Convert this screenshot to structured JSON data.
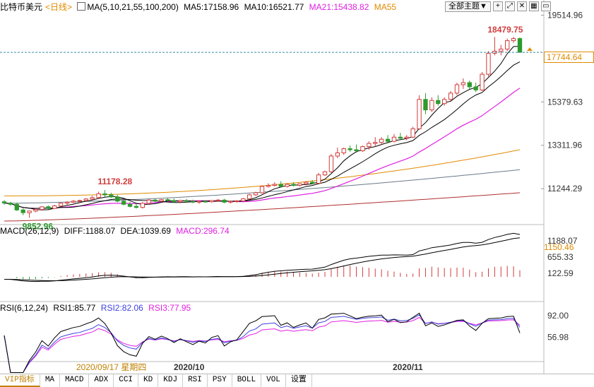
{
  "header_main": {
    "title": "比特币美元",
    "period": "<日线>",
    "ma_label": "MA(5,10,21,55,100,200)",
    "ma5": "MA5:17158.96",
    "ma10": "MA10:16521.77",
    "ma21": "MA21:15438.82",
    "ma55": "MA55"
  },
  "toolbar": {
    "theme_select": "全部主题▼",
    "icons": [
      "plus-square-icon",
      "expand-icon",
      "close-icon",
      "grid-icon",
      "window-icon"
    ]
  },
  "header_macd": {
    "label": "MACD(26,12,9)",
    "diff": "DIFF:1188.07",
    "dea": "DEA:1039.69",
    "macd": "MACD:296.74"
  },
  "header_rsi": {
    "label": "RSI(6,12,24)",
    "rsi1": "RSI1:85.77",
    "rsi2": "RSI2:82.06",
    "rsi3": "RSI3:77.95"
  },
  "price_axis": [
    "19514.96",
    "15379.63",
    "13311.96",
    "11244.29"
  ],
  "current_price": "17744.64",
  "macd_axis": [
    "1188.07",
    "655.33",
    "122.59"
  ],
  "macd_current": "1150.46",
  "rsi_axis": [
    "92.00",
    "56.98"
  ],
  "annotations": {
    "high": "18479.75",
    "mid_high": "11178.28",
    "low": "9852.96"
  },
  "date_axis": {
    "cursor_date": "2020/09/17 星期四",
    "oct": "2020/10",
    "nov": "2020/11"
  },
  "tabs": [
    "VIP指标",
    "MA",
    "MACD",
    "ADX",
    "CCI",
    "KD",
    "KDJ",
    "RSI",
    "PSY",
    "BOLL",
    "VOL",
    "设置"
  ],
  "colors": {
    "up": "#d23c3c",
    "down": "#2e9a2e",
    "ma5": "#000000",
    "ma10": "#000000",
    "ma21": "#e020e0",
    "ma55": "#e08a00",
    "ma100": "#6a7a8a",
    "ma200": "#b03030",
    "current_line": "#3a8aaa"
  },
  "chart_data": {
    "type": "candlestick",
    "title": "比特币美元<日线>",
    "ylim": [
      9600,
      19700
    ],
    "x_start": "2020-09-01",
    "x_end": "2020-11-24",
    "candles": [
      {
        "d": "2020-09-01",
        "o": 10620,
        "h": 10700,
        "l": 10480,
        "c": 10560
      },
      {
        "d": "2020-09-02",
        "o": 10560,
        "h": 10620,
        "l": 10420,
        "c": 10500
      },
      {
        "d": "2020-09-03",
        "o": 10500,
        "h": 10580,
        "l": 10180,
        "c": 10230
      },
      {
        "d": "2020-09-04",
        "o": 10230,
        "h": 10300,
        "l": 9980,
        "c": 10100
      },
      {
        "d": "2020-09-05",
        "o": 10100,
        "h": 10150,
        "l": 9852.96,
        "c": 10180
      },
      {
        "d": "2020-09-06",
        "o": 10180,
        "h": 10300,
        "l": 10120,
        "c": 10250
      },
      {
        "d": "2020-09-07",
        "o": 10250,
        "h": 10400,
        "l": 10200,
        "c": 10380
      },
      {
        "d": "2020-09-08",
        "o": 10380,
        "h": 10450,
        "l": 10250,
        "c": 10300
      },
      {
        "d": "2020-09-09",
        "o": 10300,
        "h": 10480,
        "l": 10280,
        "c": 10420
      },
      {
        "d": "2020-09-10",
        "o": 10420,
        "h": 10600,
        "l": 10380,
        "c": 10550
      },
      {
        "d": "2020-09-11",
        "o": 10550,
        "h": 10650,
        "l": 10480,
        "c": 10600
      },
      {
        "d": "2020-09-12",
        "o": 10600,
        "h": 10700,
        "l": 10550,
        "c": 10650
      },
      {
        "d": "2020-09-13",
        "o": 10650,
        "h": 10720,
        "l": 10580,
        "c": 10680
      },
      {
        "d": "2020-09-14",
        "o": 10680,
        "h": 10800,
        "l": 10620,
        "c": 10750
      },
      {
        "d": "2020-09-15",
        "o": 10750,
        "h": 10900,
        "l": 10700,
        "c": 10820
      },
      {
        "d": "2020-09-16",
        "o": 10820,
        "h": 11100,
        "l": 10780,
        "c": 11000
      },
      {
        "d": "2020-09-17",
        "o": 11000,
        "h": 11178.28,
        "l": 10850,
        "c": 10950
      },
      {
        "d": "2020-09-18",
        "o": 10950,
        "h": 11050,
        "l": 10800,
        "c": 10850
      },
      {
        "d": "2020-09-19",
        "o": 10850,
        "h": 10950,
        "l": 10600,
        "c": 10650
      },
      {
        "d": "2020-09-20",
        "o": 10650,
        "h": 10700,
        "l": 10450,
        "c": 10500
      },
      {
        "d": "2020-09-21",
        "o": 10500,
        "h": 10600,
        "l": 10350,
        "c": 10400
      },
      {
        "d": "2020-09-22",
        "o": 10400,
        "h": 10550,
        "l": 10300,
        "c": 10350
      },
      {
        "d": "2020-09-23",
        "o": 10350,
        "h": 10600,
        "l": 10300,
        "c": 10550
      },
      {
        "d": "2020-09-24",
        "o": 10550,
        "h": 10750,
        "l": 10500,
        "c": 10700
      },
      {
        "d": "2020-09-25",
        "o": 10700,
        "h": 10780,
        "l": 10600,
        "c": 10650
      },
      {
        "d": "2020-09-26",
        "o": 10650,
        "h": 10750,
        "l": 10600,
        "c": 10720
      },
      {
        "d": "2020-09-27",
        "o": 10720,
        "h": 10800,
        "l": 10620,
        "c": 10680
      },
      {
        "d": "2020-09-28",
        "o": 10680,
        "h": 10780,
        "l": 10580,
        "c": 10620
      },
      {
        "d": "2020-09-29",
        "o": 10620,
        "h": 10720,
        "l": 10560,
        "c": 10680
      },
      {
        "d": "2020-09-30",
        "o": 10680,
        "h": 10750,
        "l": 10600,
        "c": 10640
      },
      {
        "d": "2020-10-01",
        "o": 10640,
        "h": 10720,
        "l": 10550,
        "c": 10600
      },
      {
        "d": "2020-10-02",
        "o": 10600,
        "h": 10680,
        "l": 10520,
        "c": 10640
      },
      {
        "d": "2020-10-03",
        "o": 10640,
        "h": 10700,
        "l": 10580,
        "c": 10620
      },
      {
        "d": "2020-10-04",
        "o": 10620,
        "h": 10700,
        "l": 10580,
        "c": 10680
      },
      {
        "d": "2020-10-05",
        "o": 10680,
        "h": 10750,
        "l": 10620,
        "c": 10700
      },
      {
        "d": "2020-10-06",
        "o": 10700,
        "h": 10760,
        "l": 10550,
        "c": 10600
      },
      {
        "d": "2020-10-07",
        "o": 10600,
        "h": 10680,
        "l": 10540,
        "c": 10640
      },
      {
        "d": "2020-10-08",
        "o": 10640,
        "h": 10700,
        "l": 10580,
        "c": 10660
      },
      {
        "d": "2020-10-09",
        "o": 10660,
        "h": 10800,
        "l": 10620,
        "c": 10760
      },
      {
        "d": "2020-10-10",
        "o": 10760,
        "h": 11000,
        "l": 10720,
        "c": 10950
      },
      {
        "d": "2020-10-11",
        "o": 10950,
        "h": 11100,
        "l": 10900,
        "c": 11050
      },
      {
        "d": "2020-10-12",
        "o": 11050,
        "h": 11400,
        "l": 11000,
        "c": 11350
      },
      {
        "d": "2020-10-13",
        "o": 11350,
        "h": 11500,
        "l": 11300,
        "c": 11400
      },
      {
        "d": "2020-10-14",
        "o": 11400,
        "h": 11550,
        "l": 11350,
        "c": 11450
      },
      {
        "d": "2020-10-15",
        "o": 11450,
        "h": 11600,
        "l": 11300,
        "c": 11350
      },
      {
        "d": "2020-10-16",
        "o": 11350,
        "h": 11500,
        "l": 11300,
        "c": 11450
      },
      {
        "d": "2020-10-17",
        "o": 11450,
        "h": 11550,
        "l": 11350,
        "c": 11400
      },
      {
        "d": "2020-10-18",
        "o": 11400,
        "h": 11500,
        "l": 11350,
        "c": 11480
      },
      {
        "d": "2020-10-19",
        "o": 11480,
        "h": 11600,
        "l": 11400,
        "c": 11550
      },
      {
        "d": "2020-10-20",
        "o": 11550,
        "h": 11650,
        "l": 11450,
        "c": 11500
      },
      {
        "d": "2020-10-21",
        "o": 11500,
        "h": 12000,
        "l": 11480,
        "c": 11900
      },
      {
        "d": "2020-10-22",
        "o": 11900,
        "h": 12100,
        "l": 11850,
        "c": 12050
      },
      {
        "d": "2020-10-23",
        "o": 12050,
        "h": 12900,
        "l": 12000,
        "c": 12800
      },
      {
        "d": "2020-10-24",
        "o": 12800,
        "h": 13200,
        "l": 12700,
        "c": 12950
      },
      {
        "d": "2020-10-25",
        "o": 12950,
        "h": 13200,
        "l": 12850,
        "c": 13150
      },
      {
        "d": "2020-10-26",
        "o": 13150,
        "h": 13300,
        "l": 13000,
        "c": 13100
      },
      {
        "d": "2020-10-27",
        "o": 13100,
        "h": 13350,
        "l": 12950,
        "c": 13050
      },
      {
        "d": "2020-10-28",
        "o": 13050,
        "h": 13300,
        "l": 13000,
        "c": 13250
      },
      {
        "d": "2020-10-29",
        "o": 13250,
        "h": 13500,
        "l": 13100,
        "c": 13400
      },
      {
        "d": "2020-10-30",
        "o": 13400,
        "h": 13700,
        "l": 13250,
        "c": 13450
      },
      {
        "d": "2020-10-31",
        "o": 13450,
        "h": 13700,
        "l": 13350,
        "c": 13600
      },
      {
        "d": "2020-11-01",
        "o": 13600,
        "h": 13800,
        "l": 13400,
        "c": 13500
      },
      {
        "d": "2020-11-02",
        "o": 13500,
        "h": 13850,
        "l": 13450,
        "c": 13700
      },
      {
        "d": "2020-11-03",
        "o": 13700,
        "h": 13900,
        "l": 13550,
        "c": 13650
      },
      {
        "d": "2020-11-04",
        "o": 13650,
        "h": 13800,
        "l": 13550,
        "c": 13700
      },
      {
        "d": "2020-11-05",
        "o": 13700,
        "h": 14200,
        "l": 13650,
        "c": 14100
      },
      {
        "d": "2020-11-06",
        "o": 14100,
        "h": 15700,
        "l": 14050,
        "c": 15500
      },
      {
        "d": "2020-11-07",
        "o": 15500,
        "h": 15800,
        "l": 14800,
        "c": 15000
      },
      {
        "d": "2020-11-08",
        "o": 15000,
        "h": 15600,
        "l": 14900,
        "c": 15450
      },
      {
        "d": "2020-11-09",
        "o": 15450,
        "h": 15700,
        "l": 15200,
        "c": 15300
      },
      {
        "d": "2020-11-10",
        "o": 15300,
        "h": 15600,
        "l": 15200,
        "c": 15500
      },
      {
        "d": "2020-11-11",
        "o": 15500,
        "h": 15900,
        "l": 15400,
        "c": 15800
      },
      {
        "d": "2020-11-12",
        "o": 15800,
        "h": 16300,
        "l": 15700,
        "c": 16200
      },
      {
        "d": "2020-11-13",
        "o": 16200,
        "h": 16500,
        "l": 16000,
        "c": 16300
      },
      {
        "d": "2020-11-14",
        "o": 16300,
        "h": 16400,
        "l": 16000,
        "c": 16100
      },
      {
        "d": "2020-11-15",
        "o": 16100,
        "h": 16300,
        "l": 15850,
        "c": 15950
      },
      {
        "d": "2020-11-16",
        "o": 15950,
        "h": 16800,
        "l": 15900,
        "c": 16700
      },
      {
        "d": "2020-11-17",
        "o": 16700,
        "h": 17800,
        "l": 16600,
        "c": 17700
      },
      {
        "d": "2020-11-18",
        "o": 17700,
        "h": 18479.75,
        "l": 17600,
        "c": 17800
      },
      {
        "d": "2020-11-19",
        "o": 17800,
        "h": 18100,
        "l": 17600,
        "c": 17900
      },
      {
        "d": "2020-11-20",
        "o": 17900,
        "h": 18400,
        "l": 17800,
        "c": 18300
      },
      {
        "d": "2020-11-21",
        "o": 18300,
        "h": 18479.75,
        "l": 18200,
        "c": 18400
      },
      {
        "d": "2020-11-22",
        "o": 18400,
        "h": 18450,
        "l": 17800,
        "c": 17744.64
      }
    ]
  }
}
